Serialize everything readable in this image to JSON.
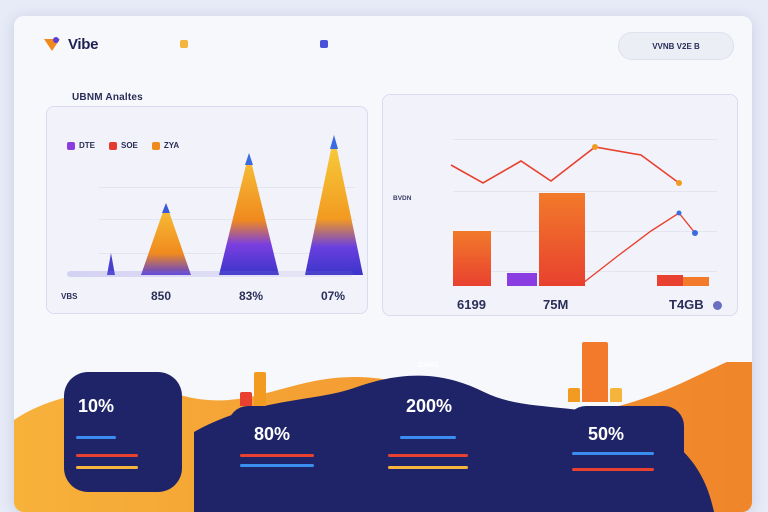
{
  "header": {
    "logo_text": "Vibe",
    "legend": [
      {
        "label": "",
        "color": "#f5b53d"
      },
      {
        "label": "",
        "color": "#4a52d9"
      }
    ],
    "action_button_label": "VVNB V2E B"
  },
  "breadcrumb": "",
  "left_panel": {
    "title": "UBNM Analtes",
    "legend": [
      {
        "label": "DTE",
        "color": "#8a3de0"
      },
      {
        "label": "SOE",
        "color": "#e53b2e"
      },
      {
        "label": "ZYA",
        "color": "#f08a1e"
      }
    ],
    "value_labels": [
      "850",
      "83%",
      "07%"
    ],
    "x_label_left": "VBS"
  },
  "right_panel": {
    "header_text": "",
    "side_label": "BVDN",
    "value_labels": [
      "6199",
      "75M",
      "T4GB"
    ]
  },
  "bottom": {
    "section_label": "",
    "cards": [
      {
        "value": "10%"
      },
      {
        "value": "80%"
      },
      {
        "value": "200%"
      },
      {
        "value": "50%"
      }
    ],
    "center_label": "DANG"
  },
  "colors": {
    "accent_orange": "#f39a21",
    "accent_purple": "#5b3fd9",
    "accent_red": "#e8412f",
    "navy": "#1f2468"
  },
  "icons": {
    "logo": "vibe-logo-icon",
    "legend_dot": "status-dot-icon"
  }
}
